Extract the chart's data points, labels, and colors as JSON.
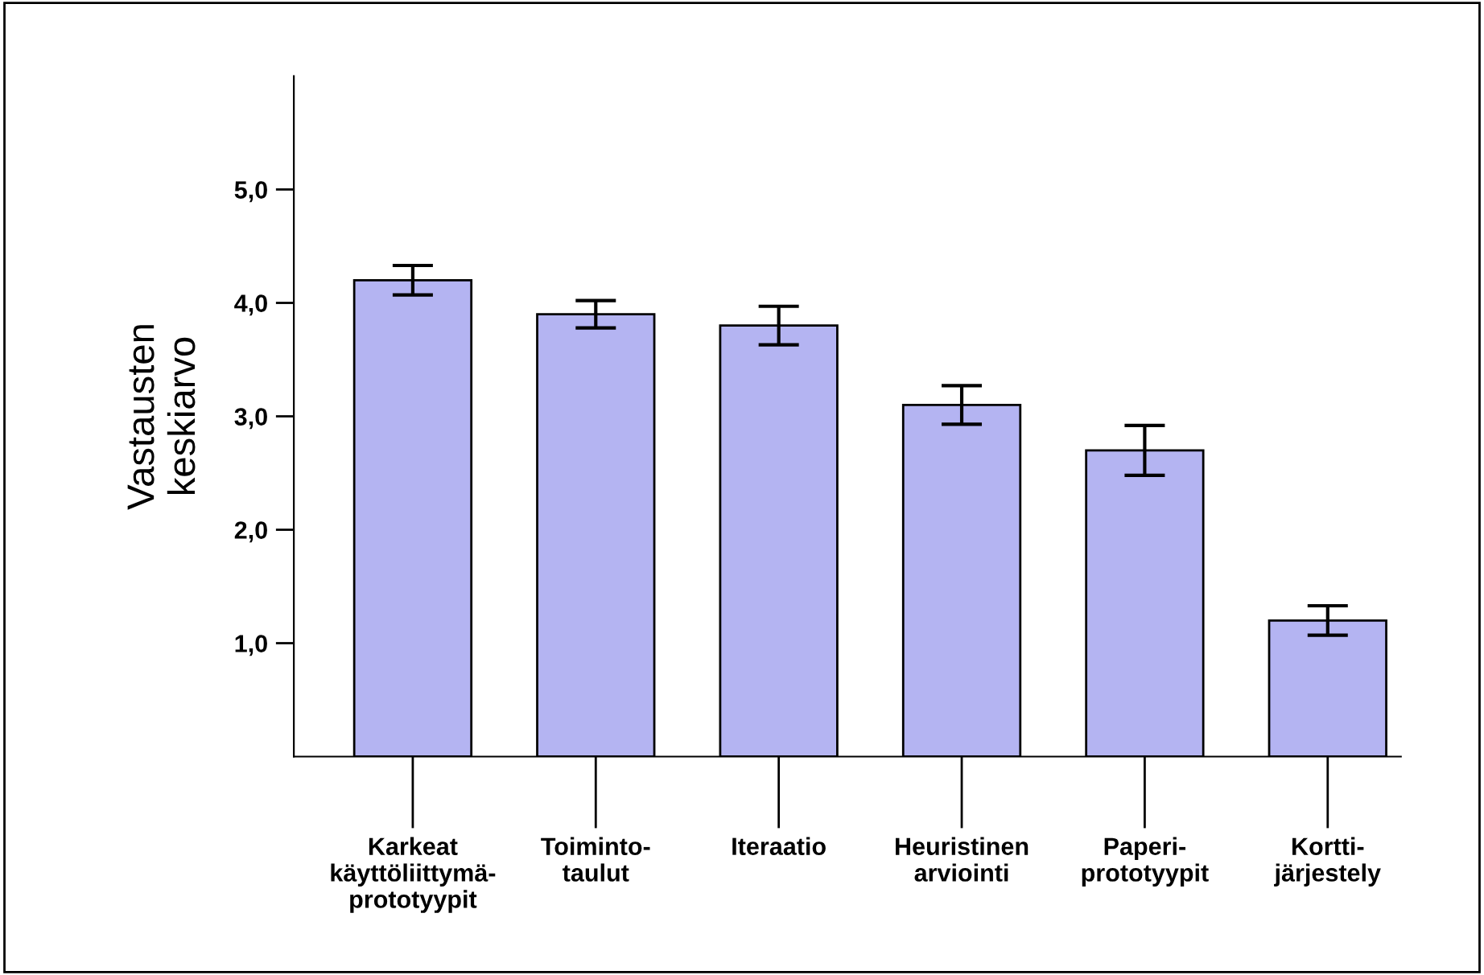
{
  "chart_data": {
    "type": "bar",
    "ylabel": "Vastausten\nkeskiarvo",
    "categories": [
      "Karkeat\nkäyttöliittymä-\nprototyypit",
      "Toiminto-\ntaulut",
      "Iteraatio",
      "Heuristinen\narviointi",
      "Paperi-\nprototyypit",
      "Kortti-\njärjestely"
    ],
    "values": [
      4.2,
      3.9,
      3.8,
      3.1,
      2.7,
      1.2
    ],
    "errors": [
      0.13,
      0.12,
      0.17,
      0.17,
      0.22,
      0.13
    ],
    "color": "#b4b4f2",
    "ylim": [
      0,
      6.0
    ],
    "yticks": [
      {
        "value": 1,
        "label": "1,0"
      },
      {
        "value": 2,
        "label": "2,0"
      },
      {
        "value": 3,
        "label": "3,0"
      },
      {
        "value": 4,
        "label": "4,0"
      },
      {
        "value": 5,
        "label": "5,0"
      }
    ],
    "grid": false,
    "legend": false
  }
}
